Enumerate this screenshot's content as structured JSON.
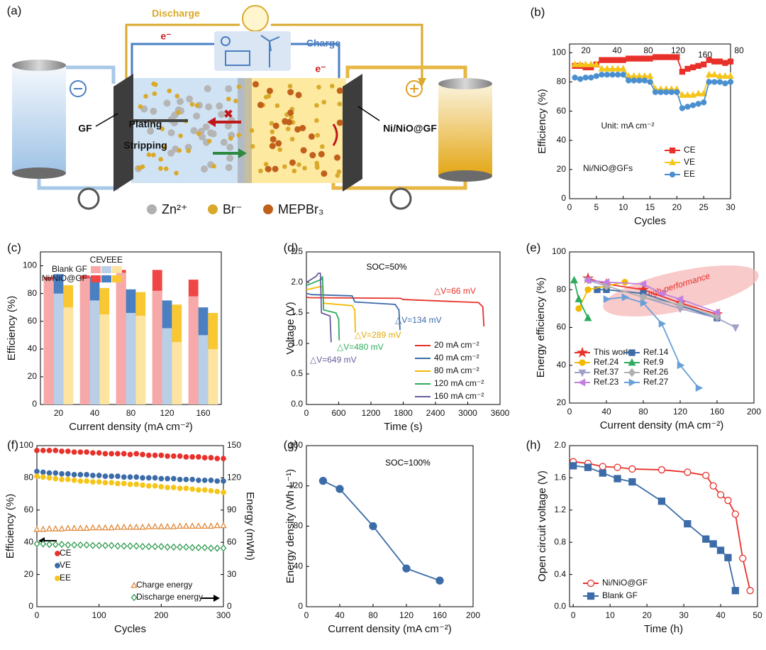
{
  "diagram": {
    "label": "(a)",
    "discharge": "Discharge",
    "charge": "Charge",
    "electron": "e⁻",
    "negative_electrode": "GF",
    "positive_electrode": "Ni/NiO@GF",
    "plating": "Plating",
    "stripping": "Stripping",
    "legend": [
      "Zn²⁺",
      "Br⁻",
      "MEPBr₃"
    ]
  },
  "chart_data": [
    {
      "label": "(b)",
      "type": "line",
      "xlabel": "Cycles",
      "ylabel": "Efficiency (%)",
      "x": [
        1,
        2,
        3,
        4,
        5,
        6,
        7,
        8,
        9,
        10,
        11,
        12,
        13,
        14,
        15,
        16,
        17,
        18,
        19,
        20,
        21,
        22,
        23,
        24,
        25,
        26,
        27,
        28,
        29,
        30
      ],
      "xlim": [
        0,
        30
      ],
      "xticks": [
        0,
        5,
        10,
        15,
        20,
        25,
        30
      ],
      "ylim": [
        0,
        106
      ],
      "yticks": [
        0,
        20,
        40,
        60,
        80,
        100
      ],
      "legend": "lower right",
      "series": [
        {
          "name": "CE",
          "color": "#e8312a",
          "marker": "square",
          "values": [
            91,
            91,
            90,
            90,
            92,
            95,
            95,
            95,
            95,
            95,
            96,
            96,
            96,
            96,
            96,
            97,
            97,
            97,
            97,
            97,
            87,
            89,
            90,
            91,
            92,
            95,
            94,
            94,
            93,
            94
          ]
        },
        {
          "name": "VE",
          "color": "#f5c518",
          "marker": "triangle",
          "values": [
            92,
            92,
            92,
            92,
            92,
            89,
            89,
            89,
            89,
            89,
            84,
            84,
            84,
            84,
            84,
            75,
            75,
            75,
            75,
            75,
            71,
            71,
            71,
            72,
            72,
            85,
            85,
            84,
            84,
            84
          ]
        },
        {
          "name": "EE",
          "color": "#4a90d0",
          "marker": "circle",
          "values": [
            83,
            82,
            83,
            83,
            84,
            85,
            85,
            85,
            85,
            85,
            81,
            81,
            81,
            81,
            80,
            73,
            73,
            73,
            73,
            73,
            62,
            63,
            64,
            65,
            66,
            80,
            80,
            80,
            79,
            80
          ]
        }
      ],
      "annotations": [
        {
          "text": "20"
        },
        {
          "text": "40"
        },
        {
          "text": "80"
        },
        {
          "text": "120"
        },
        {
          "text": "160"
        },
        {
          "text": "80"
        },
        {
          "text": "Unit: mA cm⁻²"
        },
        {
          "text": "Ni/NiO@GFs"
        }
      ]
    },
    {
      "label": "(c)",
      "type": "bar",
      "xlabel": "Current density (mA cm⁻²)",
      "ylabel": "Efficiency (%)",
      "categories": [
        "20",
        "40",
        "80",
        "120",
        "160"
      ],
      "ylim": [
        0,
        110
      ],
      "yticks": [
        0,
        20,
        40,
        60,
        80,
        100
      ],
      "legend": "upper right",
      "metrics": [
        "CE",
        "VE",
        "EE"
      ],
      "groups": [
        {
          "name": "Blank GF",
          "colors": [
            "#f7a9a9",
            "#b9cfe8",
            "#fde4a0"
          ],
          "values": [
            [
              90,
              91,
              95,
              82,
              78
            ],
            [
              80,
              75,
              66,
              55,
              50
            ],
            [
              70,
              65,
              64,
              45,
              40
            ]
          ]
        },
        {
          "name": "Ni/NiO@GF",
          "colors": [
            "#f04545",
            "#4a7fc1",
            "#f8c732"
          ],
          "values": [
            [
              92,
              93,
              97,
              97,
              90
            ],
            [
              94,
              92,
              83,
              75,
              70
            ],
            [
              86,
              84,
              81,
              72,
              66
            ]
          ]
        }
      ]
    },
    {
      "label": "(d)",
      "type": "line",
      "xlabel": "Time (s)",
      "ylabel": "Voltage (V)",
      "xlim": [
        0,
        3600
      ],
      "xticks": [
        0,
        600,
        1200,
        1800,
        2400,
        3000,
        3600
      ],
      "ylim": [
        0,
        2.5
      ],
      "yticks": [
        {
          "value": 0,
          "label": "0.0"
        },
        0.5,
        {
          "value": 1,
          "label": "1.0"
        },
        1.5,
        {
          "value": 2,
          "label": "2.0"
        },
        2.5
      ],
      "legend": "lower right",
      "series": [
        {
          "name": "20 mA cm⁻²",
          "color": "#e8312a",
          "x": [
            0,
            50,
            1750,
            1800,
            3200,
            3280,
            3300
          ],
          "values": [
            1.76,
            1.75,
            1.74,
            1.72,
            1.67,
            1.6,
            1.28
          ]
        },
        {
          "name": "40 mA cm⁻²",
          "color": "#3c6ca8",
          "x": [
            0,
            100,
            850,
            900,
            1650,
            1720,
            1740
          ],
          "values": [
            1.82,
            1.8,
            1.78,
            1.68,
            1.64,
            1.55,
            1.22
          ]
        },
        {
          "name": "80 mA cm⁻²",
          "color": "#f5b800",
          "x": [
            0,
            250,
            300,
            320,
            850,
            900,
            910
          ],
          "values": [
            1.88,
            1.93,
            1.93,
            1.66,
            1.62,
            1.55,
            1.18
          ]
        },
        {
          "name": "120 mA cm⁻²",
          "color": "#2eab5c",
          "x": [
            0,
            280,
            300,
            320,
            550,
            600,
            610
          ],
          "values": [
            1.95,
            2.05,
            2.1,
            1.55,
            1.5,
            1.4,
            1.05
          ]
        },
        {
          "name": "160 mA cm⁻²",
          "color": "#6a5c9c",
          "x": [
            0,
            180,
            220,
            260,
            280,
            440,
            460
          ],
          "values": [
            2.0,
            2.1,
            2.15,
            2.15,
            1.5,
            1.45,
            1.02
          ]
        }
      ],
      "annotations": [
        {
          "text": "SOC=50%",
          "color": "#000000"
        },
        {
          "text": "△V=66 mV",
          "color": "#e8312a"
        },
        {
          "text": "△V=134 mV",
          "color": "#3c6ca8"
        },
        {
          "text": "△V=289 mV",
          "color": "#e0a800"
        },
        {
          "text": "△V=480 mV",
          "color": "#2eab5c"
        },
        {
          "text": "△V=649 mV",
          "color": "#6a5c9c"
        }
      ]
    },
    {
      "label": "(e)",
      "type": "line",
      "xlabel": "Current density (mA cm⁻²)",
      "ylabel": "Energy efficiency (%)",
      "xlim": [
        0,
        200
      ],
      "xticks": [
        0,
        40,
        80,
        120,
        160,
        200
      ],
      "ylim": [
        20,
        100
      ],
      "yticks": [
        20,
        40,
        60,
        80,
        100
      ],
      "legend": "lower left",
      "series": [
        {
          "name": "This work",
          "color": "#e8312a",
          "marker": "star",
          "x": [
            20,
            40,
            80,
            120,
            160
          ],
          "values": [
            86,
            83,
            80,
            73,
            67
          ]
        },
        {
          "name": "Ref.14",
          "color": "#3c6ca8",
          "marker": "square",
          "x": [
            30,
            40,
            80,
            160
          ],
          "values": [
            80,
            80,
            78,
            65
          ]
        },
        {
          "name": "Ref.24",
          "color": "#f5b800",
          "marker": "circle",
          "x": [
            10,
            20,
            40,
            60
          ],
          "values": [
            70,
            80,
            82,
            84
          ]
        },
        {
          "name": "Ref.9",
          "color": "#2eab5c",
          "marker": "triangle",
          "x": [
            5,
            10,
            20
          ],
          "values": [
            85,
            75,
            65
          ]
        },
        {
          "name": "Ref.37",
          "color": "#a0a0c8",
          "marker": "tri-down",
          "x": [
            20,
            40,
            80,
            120,
            160,
            180
          ],
          "values": [
            85,
            82,
            76,
            70,
            65,
            60
          ]
        },
        {
          "name": "Ref.26",
          "color": "#b0b0b0",
          "marker": "diamond",
          "x": [
            40,
            80,
            120,
            160
          ],
          "values": [
            82,
            76,
            72,
            66
          ]
        },
        {
          "name": "Ref.23",
          "color": "#c080e0",
          "marker": "tri-left",
          "x": [
            20,
            40,
            80,
            100,
            120,
            160
          ],
          "values": [
            85,
            84,
            83,
            78,
            75,
            68
          ]
        },
        {
          "name": "Ref.27",
          "color": "#6aa0d8",
          "marker": "tri-right",
          "x": [
            40,
            60,
            80,
            100,
            120,
            140
          ],
          "values": [
            75,
            76,
            73,
            62,
            40,
            28
          ]
        }
      ],
      "annotations": [
        {
          "text": "High-performance",
          "color": "#e8312a"
        }
      ]
    },
    {
      "label": "(f)",
      "type": "line",
      "lines": false,
      "xlabel": "Cycles",
      "ylabel": "Efficiency (%)",
      "y2label": "Energy (mWh)",
      "x": [
        0,
        10,
        20,
        30,
        40,
        50,
        60,
        70,
        80,
        90,
        100,
        110,
        120,
        130,
        140,
        150,
        160,
        170,
        180,
        190,
        200,
        210,
        220,
        230,
        240,
        250,
        260,
        270,
        280,
        290,
        300
      ],
      "xlim": [
        0,
        300
      ],
      "xticks": [
        0,
        100,
        200,
        300
      ],
      "ylim": [
        0,
        100
      ],
      "yticks": [
        0,
        20,
        40,
        60,
        80,
        100
      ],
      "y2lim": [
        0,
        150
      ],
      "y2ticks": [
        0,
        30,
        60,
        90,
        120,
        150
      ],
      "legend": "lower left",
      "series": [
        {
          "name": "CE",
          "color": "#e8312a",
          "marker": "circle",
          "values": [
            97,
            97,
            97,
            97,
            96.5,
            96.5,
            96,
            96,
            96,
            95.5,
            95.5,
            95,
            95,
            95,
            95,
            94.5,
            95,
            94.5,
            94,
            94,
            94,
            93.5,
            93.5,
            93.5,
            93,
            93,
            93,
            92.5,
            92.5,
            92,
            92
          ]
        },
        {
          "name": "VE",
          "color": "#3c6ca8",
          "marker": "circle",
          "values": [
            84,
            83.5,
            83,
            83,
            82.5,
            82.5,
            82,
            82,
            82,
            81.5,
            81.5,
            81,
            81,
            81,
            80.5,
            80.5,
            80.5,
            80,
            80,
            80,
            79.5,
            79.5,
            79.5,
            79,
            79,
            79,
            78.5,
            78.5,
            78.5,
            78,
            78
          ]
        },
        {
          "name": "EE",
          "color": "#f5c518",
          "marker": "circle",
          "values": [
            81,
            80.5,
            80,
            79.5,
            79,
            79,
            78.5,
            78,
            78,
            77.5,
            77.5,
            77,
            77,
            76.5,
            76.5,
            76,
            76,
            75.5,
            75,
            75,
            74.5,
            74,
            74,
            73.5,
            73.5,
            73,
            72.5,
            72.5,
            72,
            71.5,
            71
          ]
        },
        {
          "name": "Charge energy",
          "color": "#e0883a",
          "marker": "triangle",
          "filled": false,
          "axis": "y2",
          "values": [
            72,
            72,
            72.5,
            72.5,
            72.5,
            73,
            73,
            73,
            73,
            73.5,
            73.5,
            73.5,
            73.5,
            74,
            74,
            74,
            74,
            74,
            74.5,
            74.5,
            74.5,
            74.5,
            74.5,
            75,
            75,
            75,
            75,
            75,
            75,
            75.5,
            75.5
          ]
        },
        {
          "name": "Discharge energy",
          "color": "#2e9a50",
          "marker": "diamond",
          "filled": false,
          "axis": "y2",
          "values": [
            58.5,
            58.5,
            58,
            58,
            58,
            57.5,
            57.5,
            57.5,
            57.5,
            57,
            57,
            57,
            57,
            56.5,
            56.5,
            56.5,
            56.5,
            56,
            56,
            56,
            56,
            55.5,
            55.5,
            55.5,
            55.5,
            55,
            55,
            55,
            54.5,
            54.5,
            54.5
          ]
        }
      ]
    },
    {
      "label": "(g)",
      "type": "line",
      "xlabel": "Current density (mA cm⁻²)",
      "ylabel": "Energy density (Wh L⁻¹)",
      "xlim": [
        0,
        200
      ],
      "xticks": [
        0,
        40,
        80,
        120,
        160,
        200
      ],
      "ylim": [
        0,
        160
      ],
      "yticks": [
        0,
        40,
        80,
        120,
        160
      ],
      "series": [
        {
          "color": "#3c6ca8",
          "marker": "circle",
          "x": [
            20,
            40,
            80,
            120,
            160
          ],
          "values": [
            125,
            117,
            80,
            38,
            26
          ]
        }
      ],
      "annotations": [
        {
          "text": "SOC=100%",
          "color": "#000000"
        }
      ]
    },
    {
      "label": "(h)",
      "type": "line",
      "xlabel": "Time (h)",
      "ylabel": "Open circuit voltage (V)",
      "xlim": [
        -1,
        50
      ],
      "xticks": [
        0,
        10,
        20,
        30,
        40,
        50
      ],
      "ylim": [
        0,
        2
      ],
      "yticks": [
        {
          "value": 0,
          "label": "0.0"
        },
        0.4,
        0.8,
        1.2,
        1.6,
        {
          "value": 2,
          "label": "2.0"
        }
      ],
      "legend": "lower left",
      "series": [
        {
          "name": "Ni/NiO@GF",
          "color": "#e8312a",
          "marker": "circle",
          "filled": false,
          "x": [
            0,
            4,
            8,
            12,
            16,
            24,
            31,
            36,
            38,
            40,
            42,
            44,
            46,
            48
          ],
          "values": [
            1.8,
            1.78,
            1.74,
            1.73,
            1.71,
            1.7,
            1.67,
            1.63,
            1.5,
            1.39,
            1.32,
            1.15,
            0.6,
            0.2
          ]
        },
        {
          "name": "Blank GF",
          "color": "#3c6ca8",
          "marker": "square",
          "x": [
            0,
            4,
            8,
            12,
            16,
            24,
            31,
            36,
            38,
            40,
            42,
            44
          ],
          "values": [
            1.75,
            1.73,
            1.66,
            1.59,
            1.55,
            1.31,
            1.03,
            0.84,
            0.78,
            0.7,
            0.61,
            0.2
          ]
        }
      ]
    }
  ]
}
